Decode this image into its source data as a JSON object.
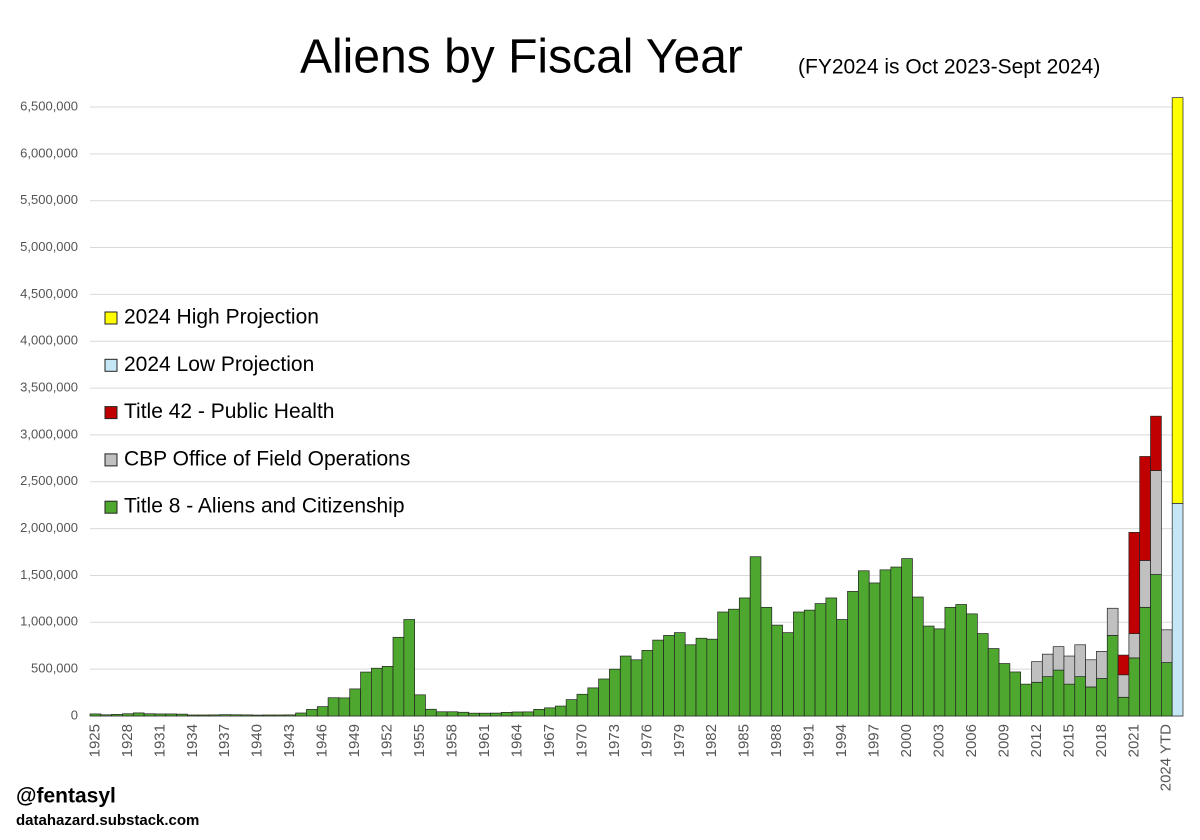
{
  "chart_data": {
    "type": "stacked_bar",
    "title": "Aliens by Fiscal Year",
    "subtitle": "(FY2024 is Oct 2023-Sept 2024)",
    "credits": [
      "@fentasyl",
      "datahazard.substack.com"
    ],
    "categories": [
      "1925",
      null,
      null,
      "1928",
      null,
      null,
      "1931",
      null,
      null,
      "1934",
      null,
      null,
      "1937",
      null,
      null,
      "1940",
      null,
      null,
      "1943",
      null,
      null,
      "1946",
      null,
      null,
      "1949",
      null,
      null,
      "1952",
      null,
      null,
      "1955",
      null,
      null,
      "1958",
      null,
      null,
      "1961",
      null,
      null,
      "1964",
      null,
      null,
      "1967",
      null,
      null,
      "1970",
      null,
      null,
      "1973",
      null,
      null,
      "1976",
      null,
      null,
      "1979",
      null,
      null,
      "1982",
      null,
      null,
      "1985",
      null,
      null,
      "1988",
      null,
      null,
      "1991",
      null,
      null,
      "1994",
      null,
      null,
      "1997",
      null,
      null,
      "2000",
      null,
      null,
      "2003",
      null,
      null,
      "2006",
      null,
      null,
      "2009",
      null,
      null,
      "2012",
      null,
      null,
      "2015",
      null,
      null,
      "2018",
      null,
      null,
      "2021",
      null,
      null,
      "2024 YTD",
      null
    ],
    "series": [
      {
        "name": "Title 8 - Aliens and Citizenship",
        "color": "#4ea72e",
        "values": [
          22000,
          13000,
          17000,
          24000,
          33000,
          24000,
          22000,
          22000,
          20000,
          11000,
          11000,
          12000,
          14000,
          13000,
          12000,
          10000,
          11000,
          11000,
          12000,
          32000,
          70000,
          100000,
          195000,
          193000,
          289000,
          469000,
          510000,
          530000,
          840000,
          1030000,
          226000,
          72000,
          45000,
          45000,
          40000,
          30000,
          30000,
          31000,
          39000,
          43000,
          44000,
          71000,
          87000,
          106000,
          175000,
          232000,
          300000,
          395000,
          500000,
          640000,
          600000,
          700000,
          810000,
          860000,
          890000,
          760000,
          830000,
          820000,
          1110000,
          1140000,
          1260000,
          1700000,
          1160000,
          970000,
          890000,
          1110000,
          1130000,
          1200000,
          1260000,
          1030000,
          1330000,
          1550000,
          1420000,
          1560000,
          1590000,
          1680000,
          1270000,
          960000,
          930000,
          1160000,
          1190000,
          1090000,
          880000,
          720000,
          560000,
          470000,
          340000,
          360000,
          420000,
          490000,
          340000,
          420000,
          310000,
          400000,
          860000,
          200000,
          620000,
          1160000,
          1510000,
          570000,
          null
        ]
      },
      {
        "name": "CBP Office of Field Operations",
        "color": "#c0c0c0",
        "values": [
          null,
          null,
          null,
          null,
          null,
          null,
          null,
          null,
          null,
          null,
          null,
          null,
          null,
          null,
          null,
          null,
          null,
          null,
          null,
          null,
          null,
          null,
          null,
          null,
          null,
          null,
          null,
          null,
          null,
          null,
          null,
          null,
          null,
          null,
          null,
          null,
          null,
          null,
          null,
          null,
          null,
          null,
          null,
          null,
          null,
          null,
          null,
          null,
          null,
          null,
          null,
          null,
          null,
          null,
          null,
          null,
          null,
          null,
          null,
          null,
          null,
          null,
          null,
          null,
          null,
          null,
          null,
          null,
          null,
          null,
          null,
          null,
          null,
          null,
          null,
          null,
          null,
          null,
          null,
          null,
          null,
          null,
          null,
          null,
          null,
          null,
          null,
          220000,
          240000,
          250000,
          300000,
          340000,
          290000,
          290000,
          290000,
          240000,
          260000,
          500000,
          1110000,
          350000,
          null
        ]
      },
      {
        "name": "Title 42 - Public Health",
        "color": "#c00000",
        "values": [
          null,
          null,
          null,
          null,
          null,
          null,
          null,
          null,
          null,
          null,
          null,
          null,
          null,
          null,
          null,
          null,
          null,
          null,
          null,
          null,
          null,
          null,
          null,
          null,
          null,
          null,
          null,
          null,
          null,
          null,
          null,
          null,
          null,
          null,
          null,
          null,
          null,
          null,
          null,
          null,
          null,
          null,
          null,
          null,
          null,
          null,
          null,
          null,
          null,
          null,
          null,
          null,
          null,
          null,
          null,
          null,
          null,
          null,
          null,
          null,
          null,
          null,
          null,
          null,
          null,
          null,
          null,
          null,
          null,
          null,
          null,
          null,
          null,
          null,
          null,
          null,
          null,
          null,
          null,
          null,
          null,
          null,
          null,
          null,
          null,
          null,
          null,
          null,
          null,
          null,
          null,
          null,
          null,
          null,
          null,
          210000,
          1080000,
          1110000,
          580000,
          null,
          null
        ]
      },
      {
        "name": "2024 Low Projection",
        "color": "#c5e6f5",
        "values": [
          null,
          null,
          null,
          null,
          null,
          null,
          null,
          null,
          null,
          null,
          null,
          null,
          null,
          null,
          null,
          null,
          null,
          null,
          null,
          null,
          null,
          null,
          null,
          null,
          null,
          null,
          null,
          null,
          null,
          null,
          null,
          null,
          null,
          null,
          null,
          null,
          null,
          null,
          null,
          null,
          null,
          null,
          null,
          null,
          null,
          null,
          null,
          null,
          null,
          null,
          null,
          null,
          null,
          null,
          null,
          null,
          null,
          null,
          null,
          null,
          null,
          null,
          null,
          null,
          null,
          null,
          null,
          null,
          null,
          null,
          null,
          null,
          null,
          null,
          null,
          null,
          null,
          null,
          null,
          null,
          null,
          null,
          null,
          null,
          null,
          null,
          null,
          null,
          null,
          null,
          null,
          null,
          null,
          null,
          null,
          null,
          null,
          null,
          null,
          null,
          2270000
        ]
      },
      {
        "name": "2024 High Projection",
        "color": "#ffff00",
        "values": [
          null,
          null,
          null,
          null,
          null,
          null,
          null,
          null,
          null,
          null,
          null,
          null,
          null,
          null,
          null,
          null,
          null,
          null,
          null,
          null,
          null,
          null,
          null,
          null,
          null,
          null,
          null,
          null,
          null,
          null,
          null,
          null,
          null,
          null,
          null,
          null,
          null,
          null,
          null,
          null,
          null,
          null,
          null,
          null,
          null,
          null,
          null,
          null,
          null,
          null,
          null,
          null,
          null,
          null,
          null,
          null,
          null,
          null,
          null,
          null,
          null,
          null,
          null,
          null,
          null,
          null,
          null,
          null,
          null,
          null,
          null,
          null,
          null,
          null,
          null,
          null,
          null,
          null,
          null,
          null,
          null,
          null,
          null,
          null,
          null,
          null,
          null,
          null,
          null,
          null,
          null,
          null,
          null,
          null,
          null,
          null,
          null,
          null,
          null,
          null,
          4330000
        ]
      }
    ],
    "ylim": [
      0,
      6500000
    ],
    "yticks": [
      0,
      {
        "value": 500000,
        "label": "500,000"
      },
      {
        "value": 1000000,
        "label": "1,000,000"
      },
      {
        "value": 1500000,
        "label": "1,500,000"
      },
      {
        "value": 2000000,
        "label": "2,000,000"
      },
      {
        "value": 2500000,
        "label": "2,500,000"
      },
      {
        "value": 3000000,
        "label": "3,000,000"
      },
      {
        "value": 3500000,
        "label": "3,500,000"
      },
      {
        "value": 4000000,
        "label": "4,000,000"
      },
      {
        "value": 4500000,
        "label": "4,500,000"
      },
      {
        "value": 5000000,
        "label": "5,000,000"
      },
      {
        "value": 5500000,
        "label": "5,500,000"
      },
      {
        "value": 6000000,
        "label": "6,000,000"
      },
      {
        "value": 6500000,
        "label": "6,500,000"
      }
    ],
    "grid": true,
    "legend": "left"
  }
}
